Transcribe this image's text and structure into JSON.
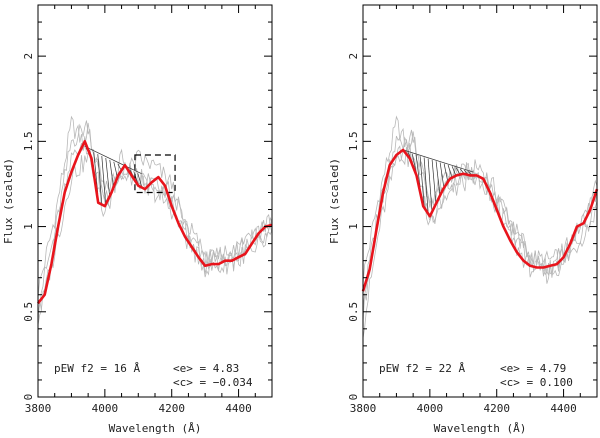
{
  "chart_data": [
    {
      "type": "line",
      "xlabel": "Wavelength (Å)",
      "ylabel": "Flux (scaled)",
      "xlim": [
        3800,
        4500
      ],
      "ylim": [
        0,
        2.3
      ],
      "x_ticks": [
        3800,
        4000,
        4200,
        4400
      ],
      "y_ticks": [
        0,
        0.5,
        1,
        1.5,
        2
      ],
      "annotations": {
        "pew": "pEW f2 = 16 Å",
        "e": "<e> = 4.83",
        "c": "<c> = −0.034"
      },
      "hatched_region": {
        "x_from": 3940,
        "x_to": 4110,
        "top_from": 1.47,
        "top_to": 1.31
      },
      "dashed_box": {
        "x_from": 4090,
        "x_to": 4210,
        "y_from": 1.2,
        "y_to": 1.42
      },
      "mean_series": {
        "name": "mean spectrum",
        "color": "#e8141c",
        "x": [
          3800,
          3820,
          3840,
          3860,
          3880,
          3900,
          3920,
          3940,
          3960,
          3980,
          4000,
          4020,
          4040,
          4060,
          4080,
          4100,
          4120,
          4140,
          4160,
          4180,
          4200,
          4220,
          4240,
          4260,
          4280,
          4300,
          4320,
          4340,
          4360,
          4380,
          4400,
          4420,
          4440,
          4460,
          4480,
          4500
        ],
        "y": [
          0.55,
          0.6,
          0.78,
          1.0,
          1.2,
          1.32,
          1.42,
          1.5,
          1.4,
          1.14,
          1.12,
          1.2,
          1.3,
          1.36,
          1.3,
          1.24,
          1.22,
          1.26,
          1.29,
          1.24,
          1.12,
          1.02,
          0.94,
          0.88,
          0.82,
          0.77,
          0.78,
          0.78,
          0.8,
          0.8,
          0.82,
          0.84,
          0.9,
          0.96,
          1.0,
          1.01
        ]
      },
      "spectra_series": [
        {
          "name": "individual 1",
          "x": [
            3800,
            3850,
            3900,
            3950,
            4000,
            4050,
            4100,
            4150,
            4200,
            4250,
            4300,
            4350,
            4400,
            4450,
            4500
          ],
          "y": [
            0.48,
            0.9,
            1.4,
            1.55,
            1.2,
            1.35,
            1.3,
            1.3,
            1.15,
            0.95,
            0.8,
            0.82,
            0.85,
            0.95,
            1.05
          ]
        },
        {
          "name": "individual 2",
          "x": [
            3800,
            3850,
            3900,
            3950,
            4000,
            4050,
            4100,
            4150,
            4200,
            4250,
            4300,
            4350,
            4400,
            4450,
            4500
          ],
          "y": [
            0.62,
            1.05,
            1.6,
            1.45,
            1.05,
            1.4,
            1.25,
            1.22,
            1.2,
            1.0,
            0.84,
            0.78,
            0.8,
            0.9,
            0.98
          ]
        },
        {
          "name": "individual 3",
          "x": [
            3800,
            3850,
            3900,
            3950,
            4000,
            4050,
            4100,
            4150,
            4200,
            4250,
            4300,
            4350,
            4400,
            4450,
            4500
          ],
          "y": [
            0.55,
            0.95,
            1.5,
            1.6,
            1.15,
            1.28,
            1.4,
            1.35,
            1.25,
            0.92,
            0.78,
            0.84,
            0.88,
            1.0,
            1.02
          ]
        },
        {
          "name": "individual 4",
          "x": [
            3800,
            3850,
            3900,
            3950,
            4000,
            4050,
            4100,
            4150,
            4200,
            4250,
            4300,
            4350,
            4400,
            4450,
            4500
          ],
          "y": [
            0.45,
            0.85,
            1.3,
            1.4,
            1.18,
            1.3,
            1.28,
            1.2,
            1.1,
            0.9,
            0.76,
            0.76,
            0.82,
            0.88,
            0.96
          ]
        }
      ]
    },
    {
      "type": "line",
      "xlabel": "Wavelength (Å)",
      "ylabel": "Flux (scaled)",
      "xlim": [
        3800,
        4500
      ],
      "ylim": [
        0,
        2.3
      ],
      "x_ticks": [
        3800,
        4000,
        4200,
        4400
      ],
      "y_ticks": [
        0,
        0.5,
        1,
        1.5,
        2
      ],
      "annotations": {
        "pew": "pEW f2 = 22 Å",
        "e": "<e> = 4.79",
        "c": "<c> = 0.100"
      },
      "hatched_region": {
        "x_from": 3920,
        "x_to": 4130,
        "top_from": 1.45,
        "top_to": 1.32
      },
      "dashed_box": null,
      "mean_series": {
        "name": "mean spectrum",
        "color": "#e8141c",
        "x": [
          3800,
          3820,
          3840,
          3860,
          3880,
          3900,
          3920,
          3940,
          3960,
          3980,
          4000,
          4020,
          4040,
          4060,
          4080,
          4100,
          4120,
          4140,
          4160,
          4180,
          4200,
          4220,
          4240,
          4260,
          4280,
          4300,
          4320,
          4340,
          4360,
          4380,
          4400,
          4420,
          4440,
          4460,
          4480,
          4500
        ],
        "y": [
          0.62,
          0.75,
          0.98,
          1.2,
          1.36,
          1.42,
          1.45,
          1.4,
          1.3,
          1.12,
          1.06,
          1.14,
          1.22,
          1.28,
          1.3,
          1.31,
          1.3,
          1.3,
          1.28,
          1.2,
          1.1,
          1.0,
          0.92,
          0.85,
          0.8,
          0.77,
          0.76,
          0.76,
          0.77,
          0.78,
          0.82,
          0.9,
          1.0,
          1.02,
          1.1,
          1.22
        ]
      },
      "spectra_series": [
        {
          "name": "individual 1",
          "x": [
            3800,
            3850,
            3900,
            3950,
            4000,
            4050,
            4100,
            4150,
            4200,
            4250,
            4300,
            4350,
            4400,
            4450,
            4500
          ],
          "y": [
            0.5,
            1.1,
            1.5,
            1.5,
            1.1,
            1.28,
            1.35,
            1.3,
            1.12,
            0.95,
            0.8,
            0.76,
            0.85,
            1.0,
            1.2
          ]
        },
        {
          "name": "individual 2",
          "x": [
            3800,
            3850,
            3900,
            3950,
            4000,
            4050,
            4100,
            4150,
            4200,
            4250,
            4300,
            4350,
            4400,
            4450,
            4500
          ],
          "y": [
            0.7,
            1.2,
            1.6,
            1.4,
            1.0,
            1.22,
            1.3,
            1.35,
            1.2,
            1.0,
            0.82,
            0.8,
            0.82,
            0.95,
            1.15
          ]
        },
        {
          "name": "individual 3",
          "x": [
            3800,
            3850,
            3900,
            3950,
            4000,
            4050,
            4100,
            4150,
            4200,
            4250,
            4300,
            4350,
            4400,
            4450,
            4500
          ],
          "y": [
            0.4,
            1.0,
            1.4,
            1.55,
            1.15,
            1.3,
            1.32,
            1.25,
            1.15,
            0.9,
            0.76,
            0.72,
            0.78,
            0.92,
            1.1
          ]
        },
        {
          "name": "individual 4",
          "x": [
            3800,
            3850,
            3900,
            3950,
            4000,
            4050,
            4100,
            4150,
            4200,
            4250,
            4300,
            4350,
            4400,
            4450,
            4500
          ],
          "y": [
            0.55,
            1.15,
            1.45,
            1.38,
            1.05,
            1.18,
            1.26,
            1.28,
            1.18,
            0.98,
            0.84,
            0.74,
            0.8,
            0.98,
            1.24
          ]
        }
      ]
    }
  ]
}
